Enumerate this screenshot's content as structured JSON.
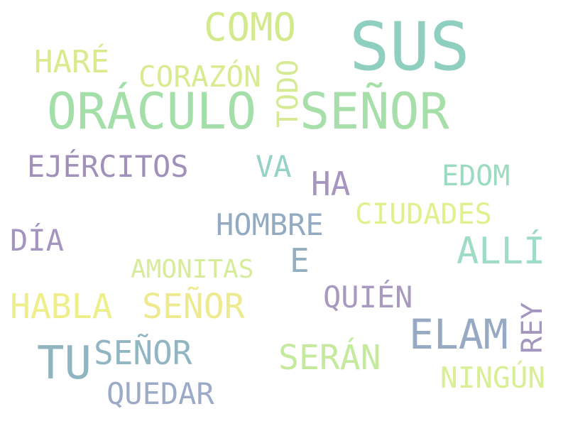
{
  "words": [
    {
      "text": "SUS",
      "color": "#8fcfc0"
    },
    {
      "text": "COMO",
      "color": "#d3ea8c"
    },
    {
      "text": "HARÉ",
      "color": "#dbea8e"
    },
    {
      "text": "CORAZÓN",
      "color": "#d8eb91"
    },
    {
      "text": "TODO",
      "color": "#d6ea95"
    },
    {
      "text": "ORÁCULO",
      "color": "#a4dfaa"
    },
    {
      "text": "SEÑOR",
      "color": "#a7dfab"
    },
    {
      "text": "EJÉRCITOS",
      "color": "#9f91b9"
    },
    {
      "text": "VA",
      "color": "#93d2c4"
    },
    {
      "text": "HA",
      "color": "#a595bf"
    },
    {
      "text": "EDOM",
      "color": "#9bdcc0"
    },
    {
      "text": "CIUDADES",
      "color": "#e1ef8d"
    },
    {
      "text": "HOMBRE",
      "color": "#93abc2"
    },
    {
      "text": "DÍA",
      "color": "#a395c0"
    },
    {
      "text": "ALLÍ",
      "color": "#9fdcc4"
    },
    {
      "text": "E",
      "color": "#94aec0"
    },
    {
      "text": "AMONITAS",
      "color": "#d6ec9a"
    },
    {
      "text": "HABLA",
      "color": "#eeee8a"
    },
    {
      "text": "SEÑOR",
      "color": "#eeea8f"
    },
    {
      "text": "QUIÉN",
      "color": "#a89abf"
    },
    {
      "text": "ELAM",
      "color": "#98a9c4"
    },
    {
      "text": "REY",
      "color": "#a497bf"
    },
    {
      "text": "TU",
      "color": "#8fb6c0"
    },
    {
      "text": "SEÑOR",
      "color": "#91b5c3"
    },
    {
      "text": "SERÁN",
      "color": "#c4ea9e"
    },
    {
      "text": "NINGÚN",
      "color": "#d9ef96"
    },
    {
      "text": "QUEDAR",
      "color": "#9caac7"
    }
  ]
}
